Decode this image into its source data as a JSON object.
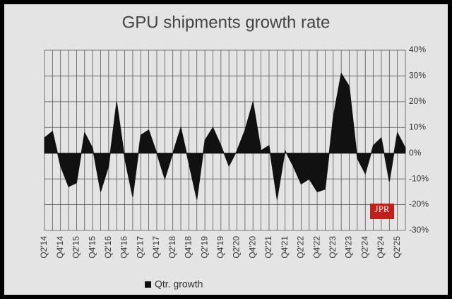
{
  "chart_data": {
    "type": "area",
    "title": "GPU shipments growth rate",
    "categories": [
      "Q2'14",
      null,
      "Q4'14",
      null,
      "Q2'15",
      null,
      "Q4'15",
      null,
      "Q2'16",
      null,
      "Q4'16",
      null,
      "Q2'17",
      null,
      "Q4'17",
      null,
      "Q2'18",
      null,
      "Q4'18",
      null,
      "Q2'19",
      null,
      "Q4'19",
      null,
      "Q2'20",
      null,
      "Q4'20",
      null,
      "Q2'21",
      null,
      "Q4'21",
      null,
      "Q2'22",
      null,
      "Q4'22",
      null,
      "Q2'23",
      null,
      "Q4'23",
      null,
      "Q2'24",
      null,
      "Q4'24",
      null,
      "Q2'25",
      null
    ],
    "series": [
      {
        "name": "Qtr. growth",
        "color": "#111111",
        "values": [
          6,
          8.5,
          -5,
          -13,
          -11.5,
          8,
          2,
          -15,
          -5,
          20,
          -2,
          -17,
          7,
          9,
          0,
          -10,
          0,
          10,
          -4,
          -18,
          5,
          10,
          3,
          -5,
          1,
          9,
          20,
          1,
          3,
          -18,
          1,
          -5,
          -12,
          -10,
          -15,
          -14,
          14,
          31,
          26,
          -2,
          -8,
          3,
          6,
          -11,
          8,
          2
        ]
      }
    ],
    "ylim": [
      -30,
      40
    ],
    "yticks": [
      {
        "value": -30,
        "label": "-30%"
      },
      {
        "value": -20,
        "label": "-20%"
      },
      {
        "value": -10,
        "label": "-10%"
      },
      {
        "value": 0,
        "label": "0%"
      },
      {
        "value": 10,
        "label": "10%"
      },
      {
        "value": 20,
        "label": "20%"
      },
      {
        "value": 30,
        "label": "30%"
      },
      {
        "value": 40,
        "label": "40%"
      }
    ],
    "grid": true,
    "logo": "JPR"
  }
}
